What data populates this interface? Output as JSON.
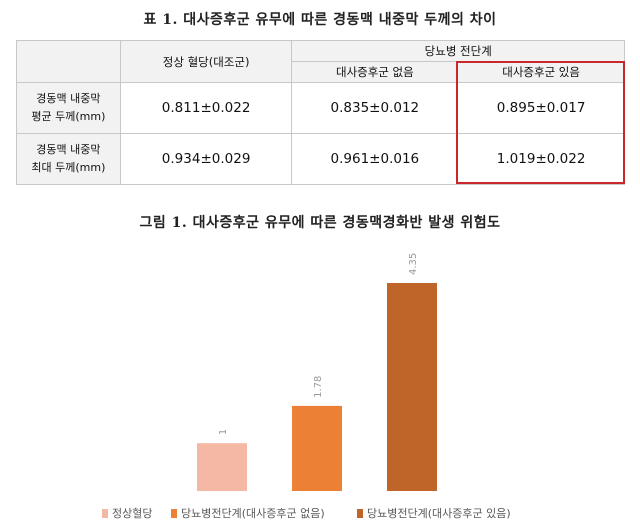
{
  "table": {
    "title": "표 1. 대사증후군 유무에 따른 경동맥 내중막 두께의 차이",
    "col_normal": "정상 혈당(대조군)",
    "col_prediabetes": "당뇨병 전단계",
    "col_without": "대사증후군 없음",
    "col_with": "대사증후군 있음",
    "rows": [
      {
        "label_line1": "경동맥 내중막",
        "label_line2": "평균 두께(mm)",
        "normal": "0.811±0.022",
        "without": "0.835±0.012",
        "with": "0.895±0.017"
      },
      {
        "label_line1": "경동맥 내중막",
        "label_line2": "최대 두께(mm)",
        "normal": "0.934±0.029",
        "without": "0.961±0.016",
        "with": "1.019±0.022"
      }
    ]
  },
  "figure_title": "그림 1. 대사증후군 유무에 따른 경동맥경화반 발생 위험도",
  "chart_data": {
    "type": "bar",
    "categories": [
      "정상혈당",
      "당뇨병전단계(대사증후군 없음)",
      "당뇨병전단계(대사증후군 있음)"
    ],
    "values": [
      1,
      1.78,
      4.35
    ],
    "value_labels": [
      "1",
      "1.78",
      "4.35"
    ],
    "colors": [
      "#f4b8a4",
      "#ec8135",
      "#c0652a"
    ],
    "ylim": [
      0,
      4.35
    ],
    "grid": false,
    "legend": "bottom",
    "legend_labels": [
      "정상혈당",
      "당뇨병전단계(대사증후군 없음)",
      "당뇨병전단계(대사증후군 있음)"
    ]
  }
}
